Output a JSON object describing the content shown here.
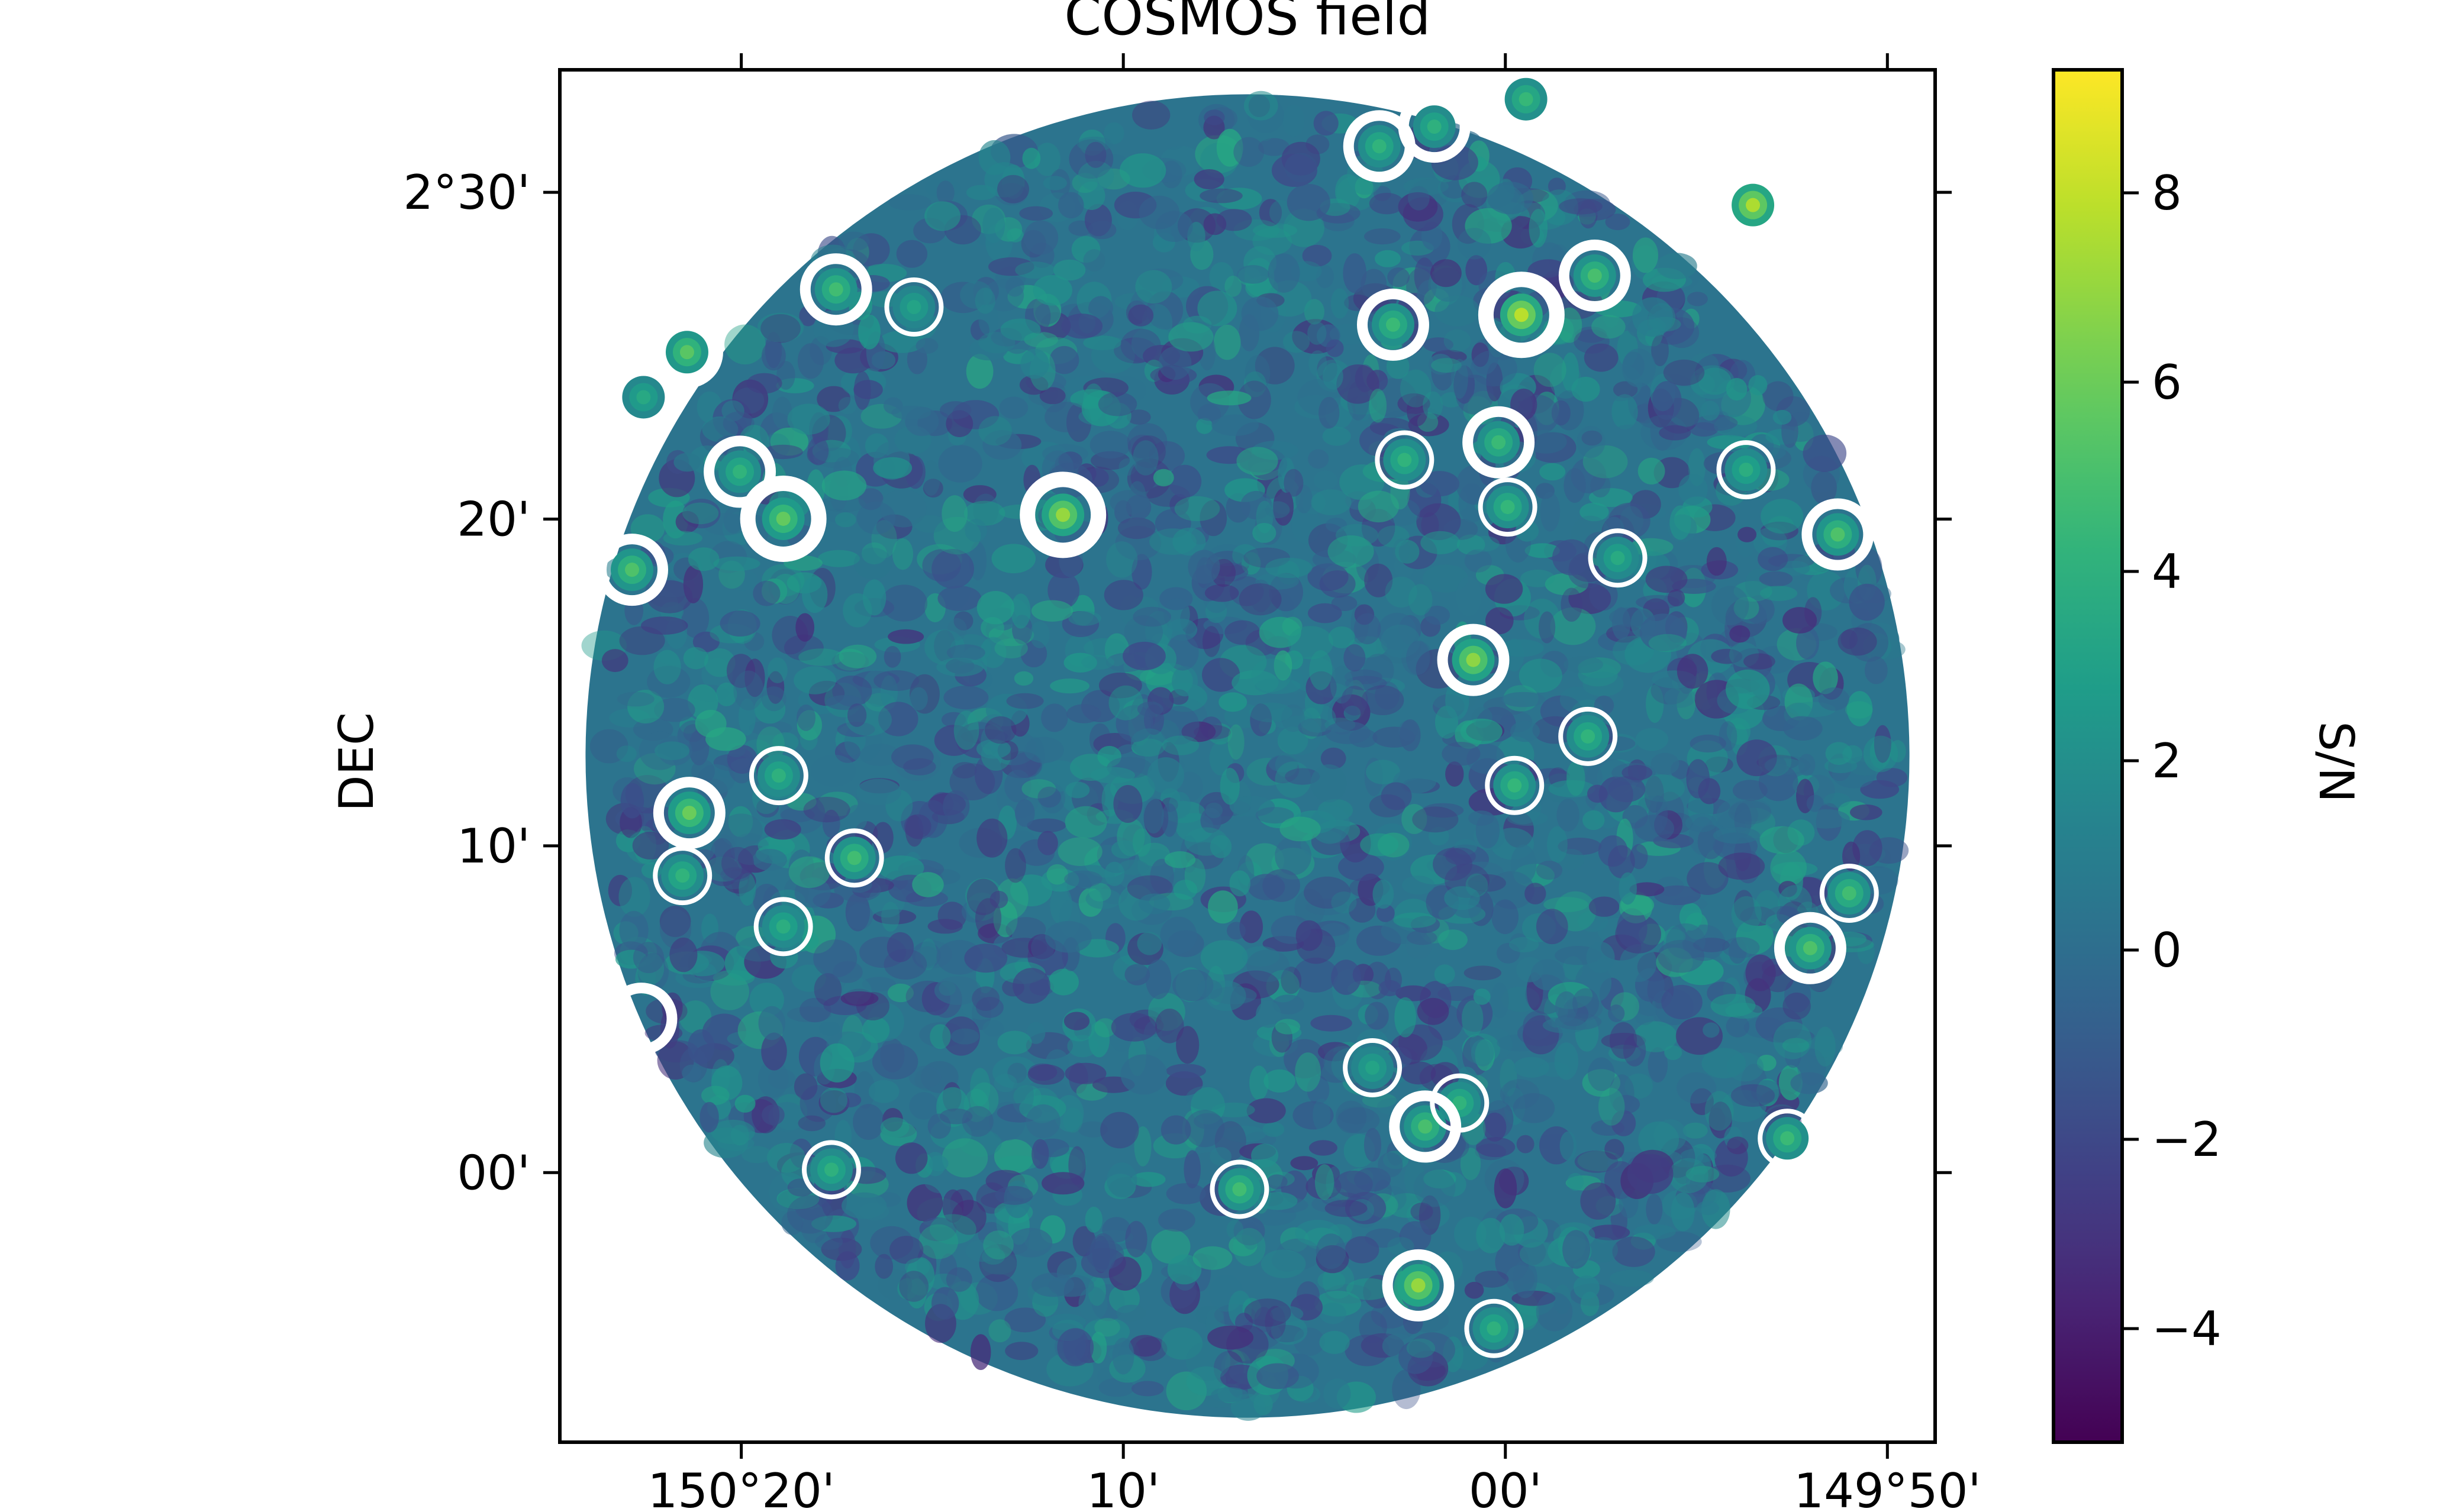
{
  "chart_data": {
    "type": "heatmap",
    "title": "COSMOS field",
    "xlabel": "",
    "ylabel": "DEC",
    "x_ticks": [
      "150°20'",
      "10'",
      "00'",
      "149°50'"
    ],
    "y_ticks": [
      "2°30'",
      "20'",
      "10'",
      "00'"
    ],
    "colorbar": {
      "label": "S/N",
      "cmap": "viridis",
      "range": [
        -5.2,
        9.3
      ],
      "ticks": [
        "8",
        "6",
        "4",
        "2",
        "0",
        "−2",
        "−4"
      ],
      "tick_values": [
        8,
        6,
        4,
        2,
        0,
        -2,
        -4
      ]
    },
    "field": {
      "center_ra_deg": 150.1125,
      "center_dec_deg": 2.2125,
      "radius_deg": 0.3375
    },
    "sources": [
      {
        "ra": 150.055,
        "dec": 2.5235,
        "snr": 4.2
      },
      {
        "ra": 150.031,
        "dec": 2.5335,
        "snr": 4.0
      },
      {
        "ra": 149.991,
        "dec": 2.5475,
        "snr": 4.5
      },
      {
        "ra": 149.892,
        "dec": 2.4935,
        "snr": 7.5
      },
      {
        "ra": 150.292,
        "dec": 2.4505,
        "snr": 4.8
      },
      {
        "ra": 150.258,
        "dec": 2.4415,
        "snr": 3.2
      },
      {
        "ra": 150.049,
        "dec": 2.4325,
        "snr": 4.6
      },
      {
        "ra": 149.993,
        "dec": 2.4375,
        "snr": 7.8
      },
      {
        "ra": 149.961,
        "dec": 2.4575,
        "snr": 5.0
      },
      {
        "ra": 150.357,
        "dec": 2.4185,
        "snr": 5.5
      },
      {
        "ra": 150.376,
        "dec": 2.3955,
        "snr": 3.5
      },
      {
        "ra": 150.334,
        "dec": 2.3575,
        "snr": 4.2
      },
      {
        "ra": 150.315,
        "dec": 2.3335,
        "snr": 5.8
      },
      {
        "ra": 150.381,
        "dec": 2.3075,
        "snr": 5.2
      },
      {
        "ra": 150.193,
        "dec": 2.3355,
        "snr": 7.0
      },
      {
        "ra": 150.044,
        "dec": 2.3635,
        "snr": 4.2
      },
      {
        "ra": 150.003,
        "dec": 2.3725,
        "snr": 4.6
      },
      {
        "ra": 149.999,
        "dec": 2.3395,
        "snr": 4.4
      },
      {
        "ra": 149.895,
        "dec": 2.3585,
        "snr": 3.8
      },
      {
        "ra": 149.855,
        "dec": 2.3255,
        "snr": 5.2
      },
      {
        "ra": 149.802,
        "dec": 2.3745,
        "snr": 5.0
      },
      {
        "ra": 149.951,
        "dec": 2.3135,
        "snr": 3.6
      },
      {
        "ra": 150.014,
        "dec": 2.2615,
        "snr": 6.8
      },
      {
        "ra": 149.964,
        "dec": 2.2225,
        "snr": 4.2
      },
      {
        "ra": 149.996,
        "dec": 2.1975,
        "snr": 4.4
      },
      {
        "ra": 150.356,
        "dec": 2.1835,
        "snr": 6.0
      },
      {
        "ra": 150.317,
        "dec": 2.2025,
        "snr": 4.0
      },
      {
        "ra": 150.359,
        "dec": 2.1515,
        "snr": 4.2
      },
      {
        "ra": 150.284,
        "dec": 2.1605,
        "snr": 4.8
      },
      {
        "ra": 150.315,
        "dec": 2.1255,
        "snr": 3.8
      },
      {
        "ra": 149.85,
        "dec": 2.1425,
        "snr": 4.8
      },
      {
        "ra": 149.867,
        "dec": 2.1145,
        "snr": 5.2
      },
      {
        "ra": 150.058,
        "dec": 2.0535,
        "snr": 3.2
      },
      {
        "ra": 150.02,
        "dec": 2.0355,
        "snr": 4.2
      },
      {
        "ra": 150.035,
        "dec": 2.0235,
        "snr": 5.0
      },
      {
        "ra": 150.116,
        "dec": 1.9915,
        "snr": 4.8
      },
      {
        "ra": 149.877,
        "dec": 2.0175,
        "snr": 4.6
      },
      {
        "ra": 150.038,
        "dec": 1.9425,
        "snr": 7.0
      },
      {
        "ra": 150.005,
        "dec": 1.9205,
        "snr": 4.0
      },
      {
        "ra": 150.294,
        "dec": 2.0015,
        "snr": 4.0
      }
    ],
    "circle_markers": [
      {
        "ra": 150.055,
        "dec": 2.5235,
        "size": "medium"
      },
      {
        "ra": 150.031,
        "dec": 2.5335,
        "size": "medium"
      },
      {
        "ra": 149.991,
        "dec": 2.5475,
        "size": "small"
      },
      {
        "ra": 150.02,
        "dec": 2.56,
        "size": "medium"
      },
      {
        "ra": 149.892,
        "dec": 2.4935,
        "size": "large"
      },
      {
        "ra": 150.292,
        "dec": 2.4505,
        "size": "medium"
      },
      {
        "ra": 150.258,
        "dec": 2.4415,
        "size": "small"
      },
      {
        "ra": 150.049,
        "dec": 2.4325,
        "size": "medium"
      },
      {
        "ra": 149.993,
        "dec": 2.4375,
        "size": "large"
      },
      {
        "ra": 149.961,
        "dec": 2.4575,
        "size": "medium"
      },
      {
        "ra": 150.357,
        "dec": 2.4185,
        "size": "medium"
      },
      {
        "ra": 150.376,
        "dec": 2.3955,
        "size": "small"
      },
      {
        "ra": 150.334,
        "dec": 2.3575,
        "size": "medium"
      },
      {
        "ra": 150.315,
        "dec": 2.3335,
        "size": "large"
      },
      {
        "ra": 150.381,
        "dec": 2.3075,
        "size": "medium"
      },
      {
        "ra": 150.193,
        "dec": 2.3355,
        "size": "large"
      },
      {
        "ra": 150.044,
        "dec": 2.3635,
        "size": "small"
      },
      {
        "ra": 150.003,
        "dec": 2.3725,
        "size": "medium"
      },
      {
        "ra": 149.999,
        "dec": 2.3395,
        "size": "small"
      },
      {
        "ra": 149.895,
        "dec": 2.3585,
        "size": "small"
      },
      {
        "ra": 149.855,
        "dec": 2.3255,
        "size": "medium"
      },
      {
        "ra": 149.802,
        "dec": 2.3745,
        "size": "medium"
      },
      {
        "ra": 149.951,
        "dec": 2.3135,
        "size": "small"
      },
      {
        "ra": 150.014,
        "dec": 2.2615,
        "size": "medium"
      },
      {
        "ra": 149.964,
        "dec": 2.2225,
        "size": "small"
      },
      {
        "ra": 149.996,
        "dec": 2.1975,
        "size": "small"
      },
      {
        "ra": 150.356,
        "dec": 2.1835,
        "size": "medium"
      },
      {
        "ra": 150.317,
        "dec": 2.2025,
        "size": "small"
      },
      {
        "ra": 150.359,
        "dec": 2.1515,
        "size": "small"
      },
      {
        "ra": 150.284,
        "dec": 2.1605,
        "size": "small"
      },
      {
        "ra": 150.315,
        "dec": 2.1255,
        "size": "small"
      },
      {
        "ra": 149.85,
        "dec": 2.1425,
        "size": "small"
      },
      {
        "ra": 149.867,
        "dec": 2.1145,
        "size": "medium"
      },
      {
        "ra": 150.377,
        "dec": 2.0785,
        "size": "medium"
      },
      {
        "ra": 150.058,
        "dec": 2.0535,
        "size": "small"
      },
      {
        "ra": 150.02,
        "dec": 2.0355,
        "size": "small"
      },
      {
        "ra": 150.035,
        "dec": 2.0235,
        "size": "medium"
      },
      {
        "ra": 150.116,
        "dec": 1.9915,
        "size": "small"
      },
      {
        "ra": 149.877,
        "dec": 2.0175,
        "size": "small"
      },
      {
        "ra": 150.038,
        "dec": 1.9425,
        "size": "medium"
      },
      {
        "ra": 150.005,
        "dec": 1.9205,
        "size": "small"
      },
      {
        "ra": 150.294,
        "dec": 2.0015,
        "size": "small"
      }
    ]
  }
}
